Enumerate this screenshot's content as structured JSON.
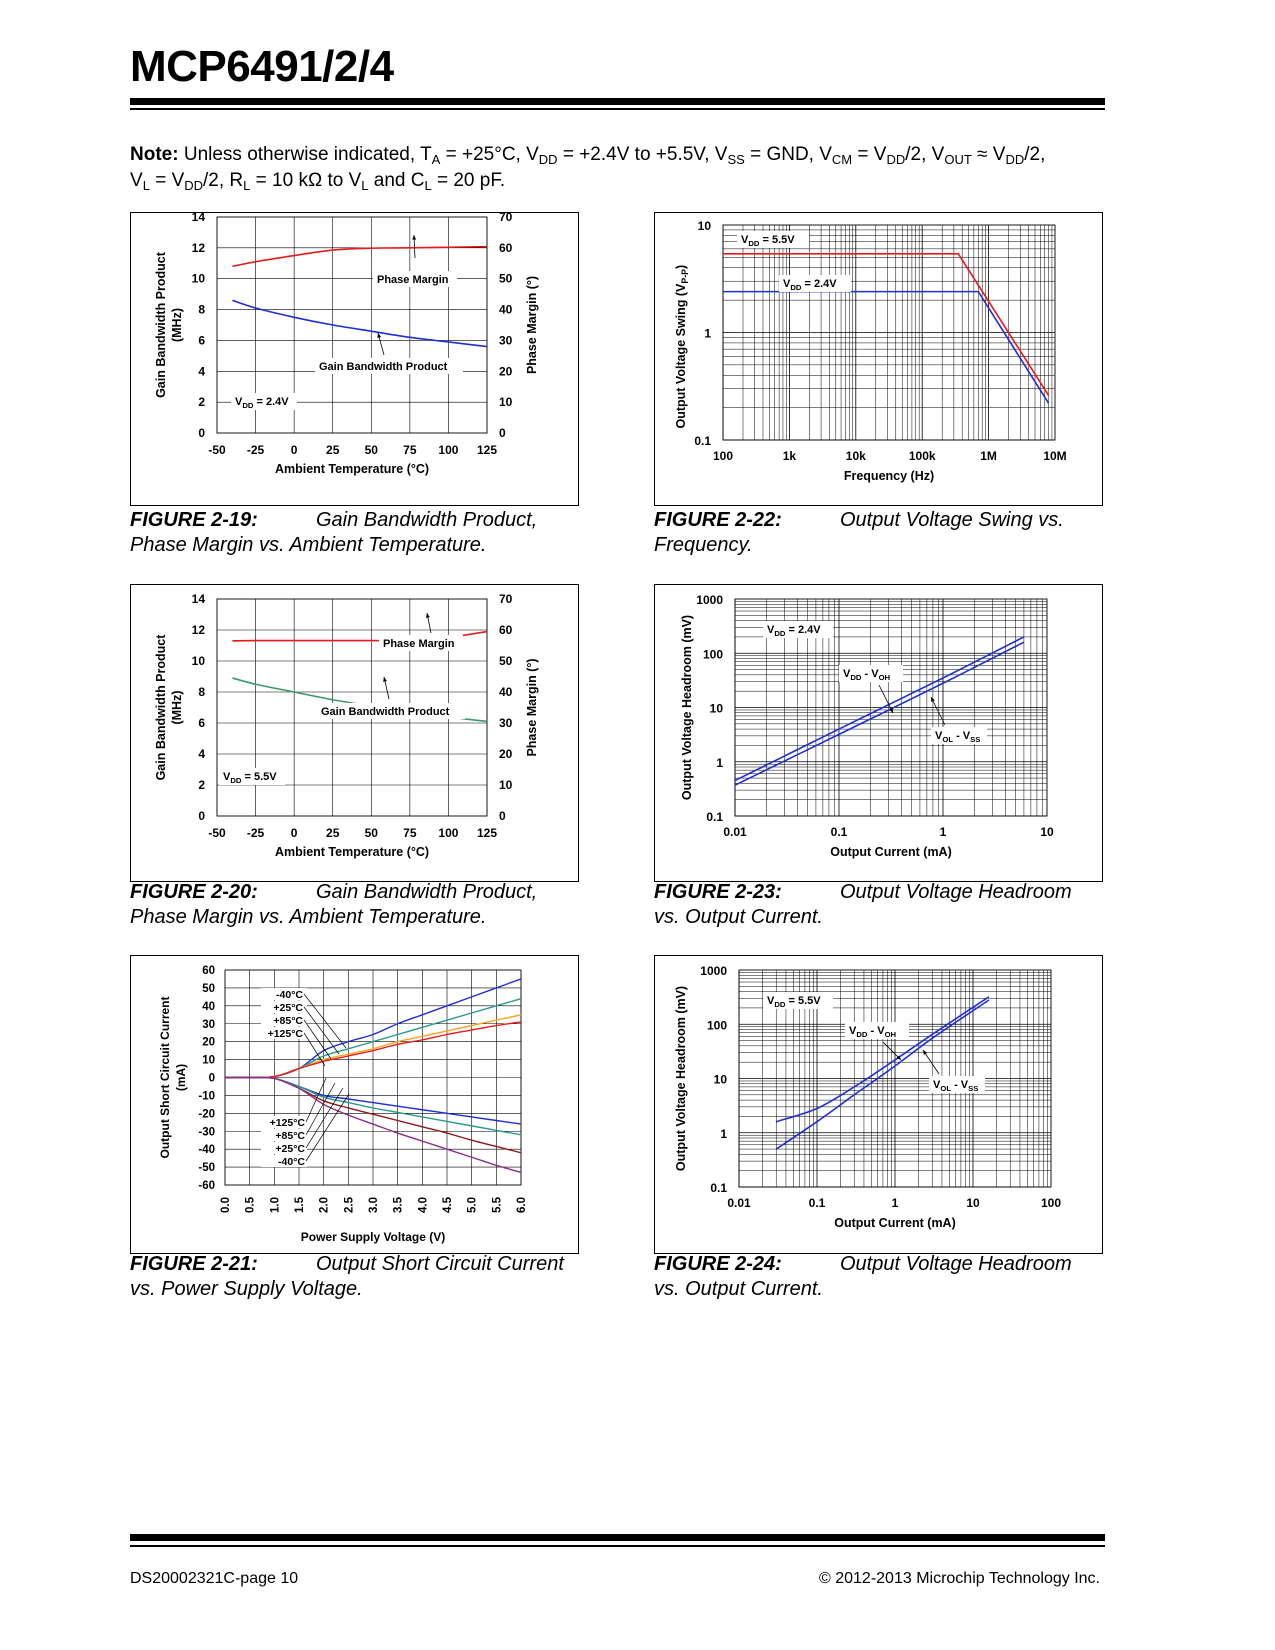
{
  "header": {
    "title": "MCP6491/2/4"
  },
  "note": {
    "label": "Note:",
    "text1": "Unless otherwise indicated, T",
    "sub1": "A",
    "text2": " = +25°C, V",
    "sub2": "DD",
    "text3": " = +2.4V to +5.5V, V",
    "sub3": "SS",
    "text4": " = GND, V",
    "sub4": "CM",
    "text5": " = V",
    "sub5": "DD",
    "text6": "/2, V",
    "sub6": "OUT",
    "text7": " ≈ V",
    "sub7": "DD",
    "text8": "/2,",
    "text9": "V",
    "sub9": "L",
    "text10": " = V",
    "sub10": "DD",
    "text11": "/2, R",
    "sub11": "L",
    "text12": " = 10 kΩ to V",
    "sub12": "L",
    "text13": " and C",
    "sub13": "L",
    "text14": " = 20 pF."
  },
  "colors": {
    "red": "#e8191c",
    "blue": "#1f2fd6",
    "green": "#3a9a6a",
    "orange": "#f5a623",
    "darkred": "#8b1a1a",
    "purple": "#8e2c8e",
    "teal": "#2a9a8c"
  },
  "captions": {
    "fig19": {
      "num": "FIGURE 2-19:",
      "line1": "Gain Bandwidth Product,",
      "line2": "Phase Margin vs. Ambient Temperature."
    },
    "fig20": {
      "num": "FIGURE 2-20:",
      "line1": "Gain Bandwidth Product,",
      "line2": "Phase Margin vs. Ambient Temperature."
    },
    "fig21": {
      "num": "FIGURE 2-21:",
      "line1": "Output Short Circuit Current",
      "line2": "vs. Power Supply Voltage."
    },
    "fig22": {
      "num": "FIGURE 2-22:",
      "line1": "Output Voltage Swing vs.",
      "line2": "Frequency."
    },
    "fig23": {
      "num": "FIGURE 2-23:",
      "line1": "Output Voltage Headroom",
      "line2": "vs. Output Current."
    },
    "fig24": {
      "num": "FIGURE 2-24:",
      "line1": "Output Voltage Headroom",
      "line2": "vs. Output Current."
    }
  },
  "footer": {
    "left": "DS20002321C-page 10",
    "right": "© 2012-2013 Microchip Technology Inc."
  },
  "chart_data": [
    {
      "id": "fig19",
      "type": "line",
      "xlabel": "Ambient Temperature (°C)",
      "ylabel": "Gain Bandwidth Product (MHz)",
      "ylabel2": "Phase Margin (°)",
      "xlim": [
        -50,
        125
      ],
      "ylim": [
        0,
        14
      ],
      "y2lim": [
        0,
        70
      ],
      "xticks": [
        "-50",
        "-25",
        "0",
        "25",
        "50",
        "75",
        "100",
        "125"
      ],
      "yticks": [
        "0",
        "2",
        "4",
        "6",
        "8",
        "10",
        "12",
        "14"
      ],
      "y2ticks": [
        "0",
        "10",
        "20",
        "30",
        "40",
        "50",
        "60",
        "70"
      ],
      "condition": "V_DD = 2.4V",
      "series": [
        {
          "name": "Phase Margin",
          "axis": "right",
          "color": "red",
          "x": [
            -40,
            -25,
            0,
            25,
            50,
            75,
            100,
            125
          ],
          "y": [
            54,
            55.5,
            57.5,
            59.3,
            59.9,
            60.0,
            60.2,
            60.4
          ]
        },
        {
          "name": "Gain Bandwidth Product",
          "axis": "left",
          "color": "blue",
          "x": [
            -40,
            -25,
            0,
            25,
            50,
            75,
            100,
            125
          ],
          "y": [
            8.6,
            8.1,
            7.5,
            7.0,
            6.6,
            6.2,
            5.9,
            5.6
          ]
        }
      ],
      "grid": true
    },
    {
      "id": "fig20",
      "type": "line",
      "xlabel": "Ambient Temperature (°C)",
      "ylabel": "Gain Bandwidth Product (MHz)",
      "ylabel2": "Phase Margin (°)",
      "xlim": [
        -50,
        125
      ],
      "ylim": [
        0,
        14
      ],
      "y2lim": [
        0,
        70
      ],
      "xticks": [
        "-50",
        "-25",
        "0",
        "25",
        "50",
        "75",
        "100",
        "125"
      ],
      "yticks": [
        "0",
        "2",
        "4",
        "6",
        "8",
        "10",
        "12",
        "14"
      ],
      "y2ticks": [
        "0",
        "10",
        "20",
        "30",
        "40",
        "50",
        "60",
        "70"
      ],
      "condition": "V_DD = 5.5V",
      "series": [
        {
          "name": "Phase Margin",
          "axis": "right",
          "color": "red",
          "x": [
            -40,
            -25,
            0,
            25,
            50,
            75,
            90,
            100,
            125
          ],
          "y": [
            56.5,
            56.6,
            56.6,
            56.6,
            56.6,
            56.5,
            56.6,
            57.5,
            59.5
          ]
        },
        {
          "name": "Gain Bandwidth Product",
          "axis": "left",
          "color": "green",
          "x": [
            -40,
            -25,
            0,
            25,
            50,
            75,
            100,
            125
          ],
          "y": [
            8.9,
            8.5,
            8.0,
            7.5,
            7.1,
            6.8,
            6.4,
            6.1
          ]
        }
      ],
      "grid": true
    },
    {
      "id": "fig21",
      "type": "line",
      "xlabel": "Power Supply Voltage (V)",
      "ylabel": "Output Short Circuit Current (mA)",
      "xlim": [
        0,
        6
      ],
      "ylim": [
        -60,
        60
      ],
      "xticks": [
        "0.0",
        "0.5",
        "1.0",
        "1.5",
        "2.0",
        "2.5",
        "3.0",
        "3.5",
        "4.0",
        "4.5",
        "5.0",
        "5.5",
        "6.0"
      ],
      "yticks": [
        "-60",
        "-50",
        "-40",
        "-30",
        "-20",
        "-10",
        "0",
        "10",
        "20",
        "30",
        "40",
        "50",
        "60"
      ],
      "labels_top": [
        "-40°C",
        "+25°C",
        "+85°C",
        "+125°C"
      ],
      "labels_bottom": [
        "+125°C",
        "+85°C",
        "+25°C",
        "-40°C"
      ],
      "series": [
        {
          "name": "-40°C",
          "color": "blue",
          "x": [
            0,
            0.5,
            1.0,
            1.5,
            2.0,
            2.5,
            3.0,
            3.5,
            4.0,
            4.5,
            5.0,
            5.5,
            6.0
          ],
          "y": [
            0,
            0,
            0.5,
            5,
            15,
            20,
            24,
            30,
            35,
            40,
            45,
            50,
            55
          ]
        },
        {
          "name": "+25°C",
          "color": "teal",
          "x": [
            0,
            0.5,
            1.0,
            1.5,
            2.0,
            2.5,
            3.0,
            3.5,
            4.0,
            4.5,
            5.0,
            5.5,
            6.0
          ],
          "y": [
            0,
            0,
            0.5,
            5,
            12,
            16,
            20,
            24,
            28,
            32,
            36,
            40,
            44
          ]
        },
        {
          "name": "+85°C",
          "color": "orange",
          "x": [
            0,
            0.5,
            1.0,
            1.5,
            2.0,
            2.5,
            3.0,
            3.5,
            4.0,
            4.5,
            5.0,
            5.5,
            6.0
          ],
          "y": [
            0,
            0,
            0.5,
            5,
            10,
            13,
            16,
            20,
            23,
            26,
            29,
            32,
            35
          ]
        },
        {
          "name": "+125°C",
          "color": "red",
          "x": [
            0,
            0.5,
            1.0,
            1.5,
            2.0,
            2.5,
            3.0,
            3.5,
            4.0,
            4.5,
            5.0,
            5.5,
            6.0
          ],
          "y": [
            0,
            0,
            0.5,
            5,
            9,
            12,
            15,
            18.5,
            21,
            24,
            26.5,
            29,
            31
          ]
        },
        {
          "name": "+125°C (sink)",
          "color": "blue",
          "x": [
            0,
            0.5,
            1.0,
            1.5,
            2.0,
            2.5,
            3.0,
            3.5,
            4.0,
            4.5,
            5.0,
            5.5,
            6.0
          ],
          "y": [
            0,
            0,
            -0.5,
            -5,
            -10,
            -12,
            -14,
            -16,
            -18,
            -20,
            -22,
            -24,
            -26
          ]
        },
        {
          "name": "+85°C (sink)",
          "color": "teal",
          "x": [
            0,
            0.5,
            1.0,
            1.5,
            2.0,
            2.5,
            3.0,
            3.5,
            4.0,
            4.5,
            5.0,
            5.5,
            6.0
          ],
          "y": [
            0,
            0,
            -0.5,
            -5,
            -11,
            -14,
            -17,
            -19.5,
            -22,
            -24.5,
            -27,
            -29.5,
            -32
          ]
        },
        {
          "name": "+25°C (sink)",
          "color": "darkred",
          "x": [
            0,
            0.5,
            1.0,
            1.5,
            2.0,
            2.5,
            3.0,
            3.5,
            4.0,
            4.5,
            5.0,
            5.5,
            6.0
          ],
          "y": [
            0,
            0,
            -0.5,
            -6,
            -13,
            -17,
            -20.5,
            -24,
            -27.5,
            -31,
            -35,
            -38.5,
            -42
          ]
        },
        {
          "name": "-40°C (sink)",
          "color": "purple",
          "x": [
            0,
            0.5,
            1.0,
            1.5,
            2.0,
            2.5,
            3.0,
            3.5,
            4.0,
            4.5,
            5.0,
            5.5,
            6.0
          ],
          "y": [
            0,
            0,
            -0.5,
            -6,
            -15,
            -21,
            -26,
            -31,
            -35.5,
            -40,
            -44.5,
            -49,
            -53
          ]
        }
      ],
      "grid": true
    },
    {
      "id": "fig22",
      "type": "line",
      "xscale": "log",
      "yscale": "log",
      "xlabel": "Frequency (Hz)",
      "ylabel": "Output Voltage Swing (V_P-P)",
      "xlim": [
        100,
        10000000
      ],
      "ylim": [
        0.1,
        10
      ],
      "xticks": [
        "100",
        "1k",
        "10k",
        "100k",
        "1M",
        "10M"
      ],
      "yticks": [
        "0.1",
        "1",
        "10"
      ],
      "series": [
        {
          "name": "V_DD = 5.5V",
          "color": "red",
          "x": [
            100,
            350000,
            8000000
          ],
          "y": [
            5.4,
            5.4,
            0.26
          ]
        },
        {
          "name": "V_DD = 2.4V",
          "color": "blue",
          "x": [
            100,
            700000,
            8000000
          ],
          "y": [
            2.4,
            2.4,
            0.22
          ]
        }
      ],
      "grid": true
    },
    {
      "id": "fig23",
      "type": "line",
      "xscale": "log",
      "yscale": "log",
      "xlabel": "Output Current (mA)",
      "ylabel": "Output Voltage Headroom (mV)",
      "xlim": [
        0.01,
        10
      ],
      "ylim": [
        0.1,
        1000
      ],
      "xticks": [
        "0.01",
        "0.1",
        "1",
        "10"
      ],
      "yticks": [
        "0.1",
        "1",
        "10",
        "100",
        "1000"
      ],
      "condition": "V_DD = 2.4V",
      "series": [
        {
          "name": "V_DD - V_OH",
          "color": "blue",
          "x": [
            0.01,
            0.1,
            1,
            6
          ],
          "y": [
            0.45,
            4.0,
            35,
            200
          ]
        },
        {
          "name": "V_OL - V_SS",
          "color": "blue",
          "x": [
            0.01,
            0.1,
            1,
            6
          ],
          "y": [
            0.37,
            3.2,
            28,
            160
          ]
        }
      ],
      "grid": true
    },
    {
      "id": "fig24",
      "type": "line",
      "xscale": "log",
      "yscale": "log",
      "xlabel": "Output Current (mA)",
      "ylabel": "Output Voltage Headroom (mV)",
      "xlim": [
        0.01,
        100
      ],
      "ylim": [
        0.1,
        1000
      ],
      "xticks": [
        "0.01",
        "0.1",
        "1",
        "10",
        "100"
      ],
      "yticks": [
        "0.1",
        "1",
        "10",
        "100",
        "1000"
      ],
      "condition": "V_DD = 5.5V",
      "series": [
        {
          "name": "V_DD - V_OH",
          "color": "blue",
          "x": [
            0.03,
            0.1,
            0.3,
            1,
            3,
            16
          ],
          "y": [
            1.6,
            2.8,
            7,
            22,
            65,
            320
          ]
        },
        {
          "name": "V_OL - V_SS",
          "color": "blue",
          "x": [
            0.03,
            0.1,
            0.3,
            1,
            3,
            16
          ],
          "y": [
            0.5,
            1.6,
            5,
            17,
            55,
            280
          ]
        }
      ],
      "grid": true
    }
  ]
}
